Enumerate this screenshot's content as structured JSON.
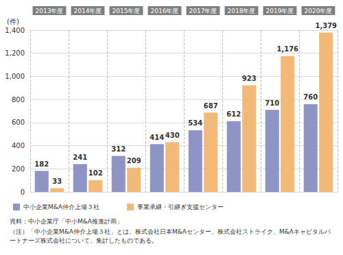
{
  "chart_data": {
    "type": "bar",
    "y_label": "(件)",
    "categories": [
      "2013年度",
      "2014年度",
      "2015年度",
      "2016年度",
      "2017年度",
      "2018年度",
      "2019年度",
      "2020年度"
    ],
    "series": [
      {
        "name": "中小企業M&A仲介上場３社",
        "color": "#8e95c4",
        "values": [
          182,
          241,
          312,
          414,
          534,
          612,
          710,
          760
        ]
      },
      {
        "name": "事業承継・引継ぎ支援センター",
        "color": "#f2b979",
        "values": [
          33,
          102,
          209,
          430,
          687,
          923,
          1176,
          1379
        ],
        "value_labels": [
          "33",
          "102",
          "209",
          "430",
          "687",
          "923",
          "1,176",
          "1,379"
        ]
      }
    ],
    "ylim": [
      0,
      1400
    ],
    "yticks": [
      0,
      200,
      400,
      600,
      800,
      {
        "value": 1000,
        "label": "1,000"
      },
      {
        "value": 1200,
        "label": "1,200"
      },
      {
        "value": 1400,
        "label": "1,400"
      }
    ],
    "grid": true,
    "data_labels": true,
    "legend": "lower left",
    "annotations": [
      "資料：中小企業庁「中小M&A推進計画」",
      "（注）「中小企業M&A仲介上場３社」とは、株式会社日本M&Aセンター、株式会社ストライク、M&Aキャピタルパートナーズ株式会社について、集計したものである。"
    ]
  }
}
